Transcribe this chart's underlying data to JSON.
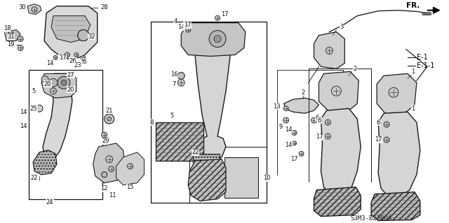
{
  "fig_width": 6.4,
  "fig_height": 3.19,
  "dpi": 100,
  "bg": "#ffffff",
  "lc": "#1a1a1a",
  "fc_light": "#e8e8e8",
  "fc_mid": "#d0d0d0",
  "fc_dark": "#aaaaaa",
  "part_number_text": "S3M3-B2300A",
  "fr_label": "FR.",
  "e1_label": "E-1",
  "e11_label": "E-1-1"
}
